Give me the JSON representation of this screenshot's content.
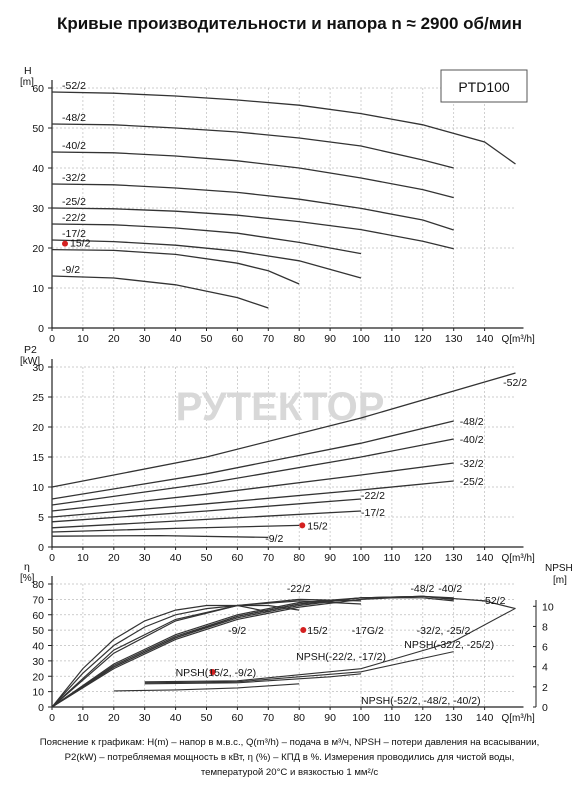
{
  "title": "Кривые производительности и напора n ≈ 2900 об/мин",
  "watermark": "РУТЕКТОР",
  "footer": {
    "line1": "Пояснение к графикам: H(m) – напор в м.в.с., Q(m³/h) – подача в м³/ч, NPSH – потери давления на всасывании,",
    "line2": "P2(kW) – потребляемая мощность в кВт, η (%) – КПД в %. Измерения проводились для чистой воды,",
    "line3": "температурой 20°C и вязкостью 1 мм²/с"
  },
  "colors": {
    "curve": "#333333",
    "marker": "#d42020",
    "watermark": "#d8d8d8"
  },
  "chart_data": [
    {
      "type": "line",
      "title": "",
      "model_label": "PTD100",
      "ylabel_top": "H",
      "ylabel_unit": "[m]",
      "xlabel": "Q[m³/h]",
      "xlim": [
        0,
        150
      ],
      "ylim": [
        0,
        60
      ],
      "x_ticks": [
        0,
        10,
        20,
        30,
        40,
        50,
        60,
        70,
        80,
        90,
        100,
        110,
        120,
        130,
        140
      ],
      "y_ticks": [
        0,
        10,
        20,
        30,
        40,
        50,
        60
      ],
      "grid": true,
      "series": [
        {
          "name": "-52/2",
          "x": [
            0,
            20,
            40,
            60,
            80,
            100,
            120,
            140,
            150
          ],
          "y": [
            59,
            58.7,
            58,
            57,
            55.7,
            53.6,
            50.8,
            46.5,
            41
          ]
        },
        {
          "name": "-48/2",
          "x": [
            0,
            20,
            40,
            60,
            80,
            100,
            120,
            130
          ],
          "y": [
            51,
            50.8,
            50,
            49,
            47.5,
            45.5,
            42,
            40
          ]
        },
        {
          "name": "-40/2",
          "x": [
            0,
            20,
            40,
            60,
            80,
            100,
            120,
            130
          ],
          "y": [
            44,
            43.8,
            43,
            41.8,
            40,
            37.5,
            34.6,
            32.6
          ]
        },
        {
          "name": "-32/2",
          "x": [
            0,
            20,
            40,
            60,
            80,
            100,
            120,
            130
          ],
          "y": [
            36,
            35.8,
            35,
            33.9,
            32.2,
            29.9,
            27,
            24.5
          ]
        },
        {
          "name": "-25/2",
          "x": [
            0,
            20,
            40,
            60,
            80,
            100,
            120,
            130
          ],
          "y": [
            30,
            29.8,
            29.2,
            28.2,
            26.6,
            24.6,
            21.7,
            19.8
          ]
        },
        {
          "name": "-22/2",
          "x": [
            0,
            20,
            40,
            60,
            80,
            100
          ],
          "y": [
            26,
            25.8,
            25,
            23.7,
            21.4,
            18.6
          ]
        },
        {
          "name": "-17/2",
          "x": [
            0,
            20,
            40,
            60,
            80,
            100
          ],
          "y": [
            22,
            21.6,
            20.7,
            19.2,
            16.8,
            12.5
          ]
        },
        {
          "name": "15/2",
          "x": [
            0,
            20,
            40,
            60,
            70,
            80
          ],
          "y": [
            19.6,
            19.4,
            18.4,
            16.2,
            14.3,
            11
          ]
        },
        {
          "name": "-9/2",
          "x": [
            0,
            20,
            40,
            60,
            70
          ],
          "y": [
            13,
            12.5,
            10.8,
            7.6,
            5
          ]
        }
      ],
      "label_order": [
        "-52/2",
        "-48/2",
        "-40/2",
        "-32/2",
        "-25/2",
        "-22/2",
        "-17/2",
        "15/2",
        "-9/2"
      ],
      "marker_label": "15/2"
    },
    {
      "type": "line",
      "title": "",
      "ylabel_top": "P2",
      "ylabel_unit": "[kW]",
      "xlabel": "Q[m³/h]",
      "xlim": [
        0,
        150
      ],
      "ylim": [
        0,
        30
      ],
      "x_ticks": [
        0,
        10,
        20,
        30,
        40,
        50,
        60,
        70,
        80,
        90,
        100,
        110,
        120,
        130,
        140
      ],
      "y_ticks": [
        0,
        5,
        10,
        15,
        20,
        25,
        30
      ],
      "grid": true,
      "series": [
        {
          "name": "-52/2",
          "x": [
            0,
            50,
            100,
            150
          ],
          "y": [
            10,
            15,
            21.5,
            29
          ]
        },
        {
          "name": "-48/2",
          "x": [
            0,
            50,
            100,
            130
          ],
          "y": [
            8,
            12.2,
            17.3,
            21
          ]
        },
        {
          "name": "-40/2",
          "x": [
            0,
            50,
            100,
            130
          ],
          "y": [
            7,
            10.6,
            15,
            18
          ]
        },
        {
          "name": "-32/2",
          "x": [
            0,
            50,
            100,
            130
          ],
          "y": [
            6,
            8.8,
            12,
            14
          ]
        },
        {
          "name": "-25/2",
          "x": [
            0,
            50,
            100,
            130
          ],
          "y": [
            5,
            7.2,
            9.5,
            11
          ]
        },
        {
          "name": "-22/2",
          "x": [
            0,
            50,
            100
          ],
          "y": [
            4.2,
            6,
            8
          ]
        },
        {
          "name": "-17/2",
          "x": [
            0,
            50,
            100
          ],
          "y": [
            3.2,
            4.6,
            6
          ]
        },
        {
          "name": "15/2",
          "x": [
            0,
            40,
            80
          ],
          "y": [
            2.5,
            3.1,
            3.6
          ]
        },
        {
          "name": "-9/2",
          "x": [
            0,
            35,
            70
          ],
          "y": [
            1.8,
            1.9,
            1.6
          ]
        }
      ],
      "marker_label": "15/2"
    },
    {
      "type": "line",
      "title": "",
      "ylabel_top": "η",
      "ylabel_unit": "[%]",
      "ylabel_right": "NPSH",
      "ylabel_right_unit": "[m]",
      "xlabel": "Q[m³/h]",
      "xlim": [
        0,
        150
      ],
      "ylim": [
        0,
        80
      ],
      "y2lim": [
        0,
        14
      ],
      "x_ticks": [
        0,
        10,
        20,
        30,
        40,
        50,
        60,
        70,
        80,
        90,
        100,
        110,
        120,
        130,
        140
      ],
      "y_ticks": [
        0,
        10,
        20,
        30,
        40,
        50,
        60,
        70,
        80
      ],
      "y2_ticks": [
        0,
        2,
        4,
        6,
        8,
        10
      ],
      "grid": true,
      "efficiency_labels": [
        "-22/2",
        "-48/2",
        "-40/2",
        "-52/2",
        "-9/2",
        "15/2",
        "-17G/2",
        "-32/2, -25/2"
      ],
      "efficiency_series": [
        {
          "name": "-9/2",
          "x": [
            0,
            10,
            20,
            30,
            40,
            50,
            60,
            70
          ],
          "y": [
            0,
            25,
            44,
            56,
            63,
            66,
            66,
            62
          ]
        },
        {
          "name": "15/2",
          "x": [
            0,
            10,
            20,
            30,
            40,
            50,
            60,
            70,
            80
          ],
          "y": [
            0,
            22,
            40,
            52,
            60,
            64,
            66,
            66,
            63
          ]
        },
        {
          "name": "-17/2",
          "x": [
            0,
            20,
            40,
            60,
            80,
            100
          ],
          "y": [
            0,
            37,
            57,
            66,
            69,
            67
          ]
        },
        {
          "name": "-22/2",
          "x": [
            0,
            20,
            40,
            60,
            80,
            100
          ],
          "y": [
            0,
            35,
            56,
            66,
            70,
            69
          ]
        },
        {
          "name": "-25/2",
          "x": [
            0,
            20,
            40,
            60,
            80,
            100,
            120,
            130
          ],
          "y": [
            0,
            28,
            47,
            60,
            68,
            71,
            71,
            69
          ]
        },
        {
          "name": "-32/2",
          "x": [
            0,
            20,
            40,
            60,
            80,
            100,
            120,
            130
          ],
          "y": [
            0,
            27,
            46,
            59,
            67,
            71,
            72,
            70
          ]
        },
        {
          "name": "-40/2",
          "x": [
            0,
            20,
            40,
            60,
            80,
            100,
            120,
            130
          ],
          "y": [
            0,
            26,
            45,
            59,
            67,
            71,
            72,
            70
          ]
        },
        {
          "name": "-48/2",
          "x": [
            0,
            20,
            40,
            60,
            80,
            100,
            120,
            130
          ],
          "y": [
            0,
            26,
            45,
            58,
            66,
            71,
            72,
            71
          ]
        },
        {
          "name": "-52/2",
          "x": [
            0,
            20,
            40,
            60,
            80,
            100,
            120,
            140,
            150
          ],
          "y": [
            0,
            25,
            44,
            57,
            65,
            70,
            72,
            69,
            64
          ]
        }
      ],
      "npsh_series": [
        {
          "name": "NPSH(15/2, -9/2)",
          "x": [
            20,
            40,
            60,
            80
          ],
          "y": [
            1.6,
            1.7,
            1.9,
            2.3
          ]
        },
        {
          "name": "NPSH(-22/2, -17/2)",
          "x": [
            30,
            60,
            90,
            100
          ],
          "y": [
            2.3,
            2.4,
            3.0,
            3.3
          ]
        },
        {
          "name": "NPSH(-32/2, -25/2)",
          "x": [
            30,
            60,
            100,
            130
          ],
          "y": [
            2.4,
            2.5,
            3.5,
            5.5
          ]
        },
        {
          "name": "NPSH(-52/2, -48/2, -40/2)",
          "x": [
            30,
            60,
            100,
            130,
            150
          ],
          "y": [
            2.5,
            2.6,
            3.8,
            6.5,
            9.8
          ]
        }
      ],
      "marker_label": "15/2"
    }
  ]
}
